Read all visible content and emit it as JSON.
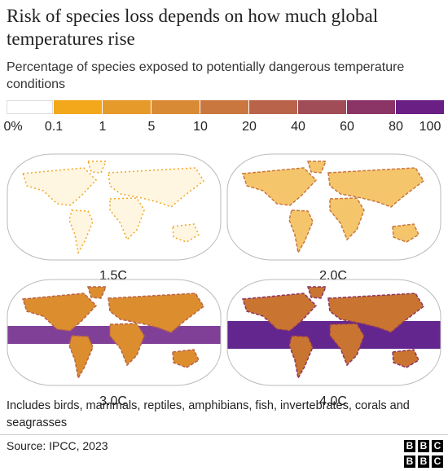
{
  "header": {
    "title": "Risk of species loss depends on how much global temperatures rise",
    "subtitle": "Percentage of species exposed to potentially dangerous temperature conditions"
  },
  "legend": {
    "labels": [
      "0%",
      "0.1",
      "1",
      "5",
      "10",
      "20",
      "40",
      "60",
      "80",
      "100"
    ],
    "colors": [
      "#ffffff",
      "#f3a81b",
      "#e69a2a",
      "#d98a34",
      "#c9773f",
      "#b8634a",
      "#a14d57",
      "#8a3566",
      "#6a1f85"
    ]
  },
  "maps": [
    {
      "label": "1.5C"
    },
    {
      "label": "2.0C"
    },
    {
      "label": "3.0C"
    },
    {
      "label": "4.0C"
    }
  ],
  "note": "Includes birds, mammals, reptiles, amphibians, fish, invertebrates, corals and seagrasses",
  "source": "Source: IPCC, 2023",
  "logo": "BBC"
}
